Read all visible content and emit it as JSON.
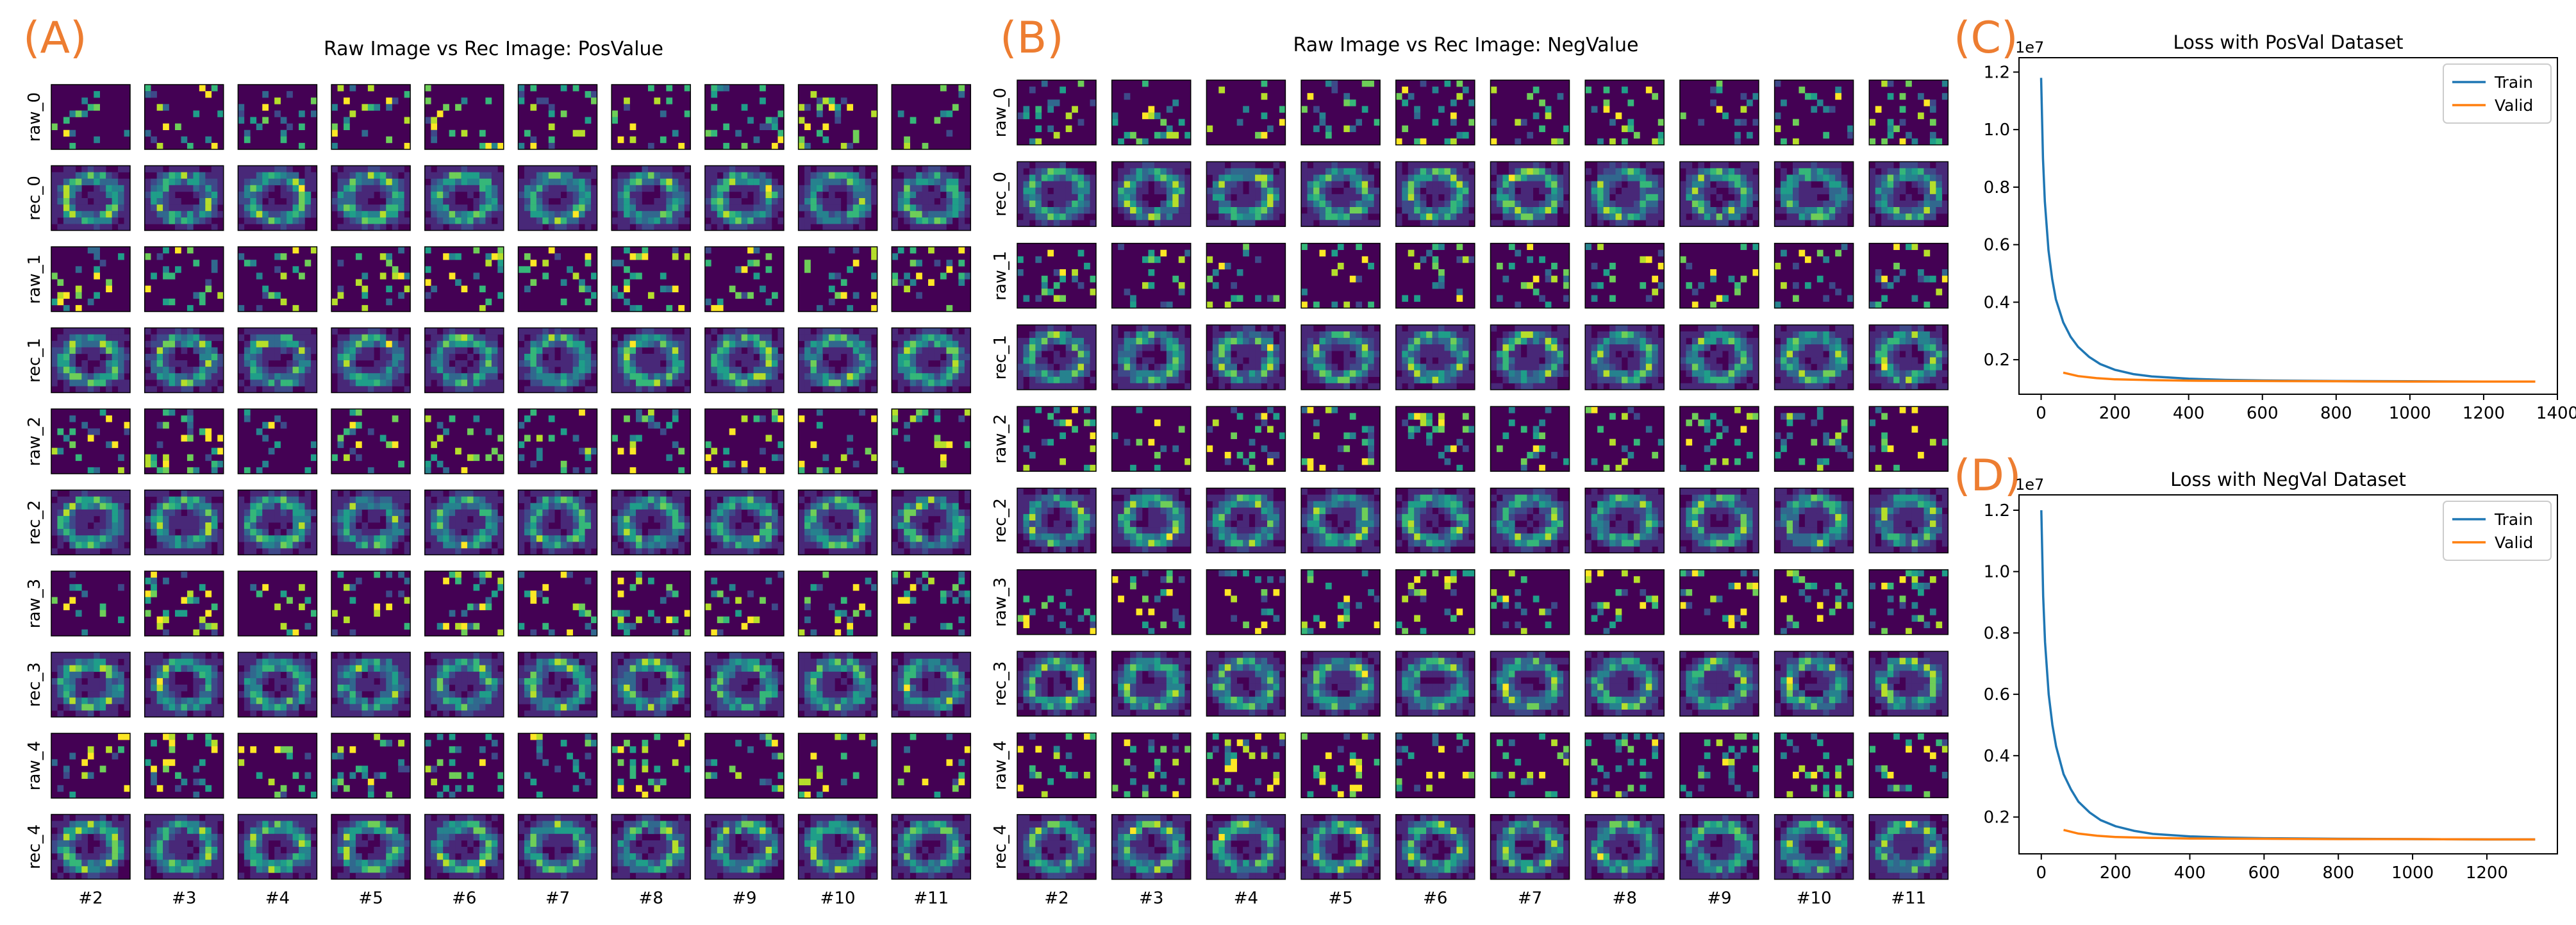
{
  "panels": {
    "A": {
      "letter": "(A)",
      "title": "Raw Image vs Rec Image: PosValue",
      "row_labels": [
        "raw_0",
        "rec_0",
        "raw_1",
        "rec_1",
        "raw_2",
        "rec_2",
        "raw_3",
        "rec_3",
        "raw_4",
        "rec_4"
      ],
      "col_labels": [
        "#2",
        "#3",
        "#4",
        "#5",
        "#6",
        "#7",
        "#8",
        "#9",
        "#10",
        "#11"
      ]
    },
    "B": {
      "letter": "(B)",
      "title": "Raw Image vs Rec Image: NegValue",
      "row_labels": [
        "raw_0",
        "rec_0",
        "raw_1",
        "rec_1",
        "raw_2",
        "rec_2",
        "raw_3",
        "rec_3",
        "raw_4",
        "rec_4"
      ],
      "col_labels": [
        "#2",
        "#3",
        "#4",
        "#5",
        "#6",
        "#7",
        "#8",
        "#9",
        "#10",
        "#11"
      ]
    },
    "C": {
      "letter": "(C)"
    },
    "D": {
      "letter": "(D)"
    }
  },
  "colors": {
    "panel_letter": "#ED7D31",
    "train": "#1f77b4",
    "valid": "#ff7f0e",
    "viridis": [
      "#440154",
      "#482878",
      "#3e4989",
      "#31688e",
      "#26828e",
      "#1f9e89",
      "#35b779",
      "#6ece58",
      "#b5de2b",
      "#fde725"
    ]
  },
  "chart_data": [
    {
      "type": "heatmap",
      "title": "Raw Image vs Rec Image: PosValue",
      "row_labels": [
        "raw_0",
        "rec_0",
        "raw_1",
        "rec_1",
        "raw_2",
        "rec_2",
        "raw_3",
        "rec_3",
        "raw_4",
        "rec_4"
      ],
      "col_labels": [
        "#2",
        "#3",
        "#4",
        "#5",
        "#6",
        "#7",
        "#8",
        "#9",
        "#10",
        "#11"
      ],
      "colormap": "viridis"
    },
    {
      "type": "heatmap",
      "title": "Raw Image vs Rec Image: NegValue",
      "row_labels": [
        "raw_0",
        "rec_0",
        "raw_1",
        "rec_1",
        "raw_2",
        "rec_2",
        "raw_3",
        "rec_3",
        "raw_4",
        "rec_4"
      ],
      "col_labels": [
        "#2",
        "#3",
        "#4",
        "#5",
        "#6",
        "#7",
        "#8",
        "#9",
        "#10",
        "#11"
      ],
      "colormap": "viridis"
    },
    {
      "type": "line",
      "title": "Loss with PosVal Dataset",
      "y_multiplier": "1e7",
      "xlim": [
        -60,
        1400
      ],
      "ylim": [
        0.08,
        1.25
      ],
      "xticks": [
        "0",
        "200",
        "400",
        "600",
        "800",
        "1000",
        "1200",
        "1400"
      ],
      "yticks": [
        "0.2",
        "0.4",
        "0.6",
        "0.8",
        "1.0",
        "1.2"
      ],
      "legend": "top-right",
      "series": [
        {
          "name": "Train",
          "x": [
            0,
            5,
            10,
            20,
            30,
            40,
            60,
            80,
            100,
            130,
            160,
            200,
            250,
            300,
            400,
            500,
            600,
            800,
            1000,
            1200,
            1340
          ],
          "y": [
            1.18,
            0.9,
            0.75,
            0.58,
            0.48,
            0.41,
            0.33,
            0.28,
            0.245,
            0.21,
            0.185,
            0.165,
            0.15,
            0.142,
            0.134,
            0.13,
            0.128,
            0.126,
            0.125,
            0.124,
            0.124
          ]
        },
        {
          "name": "Valid",
          "x": [
            60,
            100,
            150,
            200,
            300,
            400,
            600,
            800,
            1000,
            1200,
            1340
          ],
          "y": [
            0.155,
            0.143,
            0.136,
            0.132,
            0.129,
            0.127,
            0.126,
            0.125,
            0.124,
            0.124,
            0.124
          ]
        }
      ]
    },
    {
      "type": "line",
      "title": "Loss with NegVal Dataset",
      "y_multiplier": "1e7",
      "xlim": [
        -60,
        1390
      ],
      "ylim": [
        0.08,
        1.25
      ],
      "xticks": [
        "0",
        "200",
        "400",
        "600",
        "800",
        "1000",
        "1200"
      ],
      "yticks": [
        "0.2",
        "0.4",
        "0.6",
        "0.8",
        "1.0",
        "1.2"
      ],
      "legend": "top-right",
      "series": [
        {
          "name": "Train",
          "x": [
            0,
            5,
            10,
            20,
            30,
            40,
            60,
            80,
            100,
            130,
            160,
            200,
            250,
            300,
            400,
            500,
            600,
            800,
            1000,
            1200,
            1330
          ],
          "y": [
            1.2,
            0.92,
            0.77,
            0.6,
            0.5,
            0.43,
            0.34,
            0.29,
            0.25,
            0.215,
            0.19,
            0.17,
            0.155,
            0.145,
            0.137,
            0.133,
            0.131,
            0.129,
            0.128,
            0.127,
            0.127
          ]
        },
        {
          "name": "Valid",
          "x": [
            60,
            100,
            150,
            200,
            300,
            400,
            600,
            800,
            1000,
            1200,
            1330
          ],
          "y": [
            0.158,
            0.146,
            0.139,
            0.135,
            0.132,
            0.13,
            0.129,
            0.128,
            0.128,
            0.127,
            0.127
          ]
        }
      ]
    }
  ]
}
